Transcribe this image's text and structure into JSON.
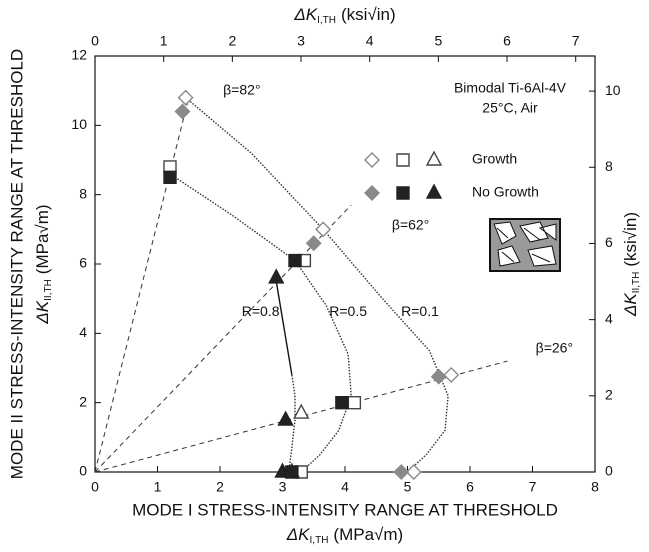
{
  "chart_data": {
    "type": "scatter",
    "xlim": [
      0,
      8
    ],
    "xticks": [
      0,
      1,
      2,
      3,
      4,
      5,
      6,
      7,
      8
    ],
    "ylim": [
      0,
      12
    ],
    "yticks": [
      0,
      2,
      4,
      6,
      8,
      10,
      12
    ],
    "x2lim": [
      0,
      7.281
    ],
    "x2ticks": [
      0,
      1,
      2,
      3,
      4,
      5,
      6,
      7
    ],
    "y2lim": [
      0,
      10.921
    ],
    "y2ticks": [
      0,
      2,
      4,
      6,
      8,
      10
    ],
    "x_label": {
      "text": "MODE I STRESS-INTENSITY RANGE AT THRESHOLD",
      "symbol": "ΔK",
      "subscript": "I,TH",
      "unit": "(MPa√m)"
    },
    "x2_label": {
      "symbol": "ΔK",
      "subscript": "I,TH",
      "unit": "(ksi√in)"
    },
    "y_label": {
      "text": "MODE II STRESS-INTENSITY RANGE AT THRESHOLD",
      "symbol": "ΔK",
      "subscript": "II,TH",
      "unit": "(MPa√m)"
    },
    "y2_label": {
      "symbol": "ΔK",
      "subscript": "II,TH",
      "unit": "(ksi√in)"
    },
    "annotations": [
      "Bimodal Ti-6Al-4V",
      "25°C, Air"
    ],
    "groups": [
      {
        "name": "Growth",
        "series": [
          {
            "marker": "diamond",
            "filled": false,
            "color": "#888888",
            "x": [
              1.45,
              3.65,
              5.7,
              5.1
            ],
            "y": [
              10.8,
              7.0,
              2.8,
              0.0
            ]
          },
          {
            "marker": "square",
            "filled": false,
            "color": "#444444",
            "x": [
              1.2,
              3.35,
              4.15,
              3.3
            ],
            "y": [
              8.8,
              6.1,
              2.0,
              0.0
            ]
          },
          {
            "marker": "triangle",
            "filled": false,
            "color": "#444444",
            "x": [
              3.3,
              3.15
            ],
            "y": [
              1.7,
              0.0
            ]
          }
        ]
      },
      {
        "name": "No Growth",
        "series": [
          {
            "marker": "diamond",
            "filled": true,
            "color": "#8a8a8a",
            "x": [
              1.4,
              3.5,
              5.5,
              4.9
            ],
            "y": [
              10.4,
              6.6,
              2.75,
              0.0
            ]
          },
          {
            "marker": "square",
            "filled": true,
            "color": "#222222",
            "x": [
              1.2,
              3.2,
              3.95,
              3.15
            ],
            "y": [
              8.5,
              6.1,
              2.0,
              0.0
            ]
          },
          {
            "marker": "triangle",
            "filled": true,
            "color": "#222222",
            "x": [
              2.9,
              3.05,
              3.0
            ],
            "y": [
              5.6,
              1.5,
              0.0
            ]
          }
        ]
      }
    ],
    "curves": [
      {
        "label": "R=0.1",
        "style": "dotted",
        "x": [
          1.45,
          2.5,
          3.65,
          4.6,
          5.35,
          5.65,
          5.6,
          5.3,
          5.0
        ],
        "y": [
          10.8,
          9.2,
          7.0,
          5.0,
          3.5,
          2.2,
          1.2,
          0.5,
          0.0
        ]
      },
      {
        "label": "R=0.5",
        "style": "dotted",
        "x": [
          1.2,
          2.2,
          3.2,
          3.7,
          4.05,
          4.1,
          3.9,
          3.6,
          3.3
        ],
        "y": [
          8.6,
          7.4,
          6.1,
          4.8,
          3.4,
          2.2,
          1.2,
          0.5,
          0.0
        ]
      },
      {
        "label": "R=0.8",
        "style": "solid",
        "x": [
          2.9,
          3.15
        ],
        "y": [
          5.5,
          2.8
        ]
      },
      {
        "style": "dotted",
        "x": [
          3.15,
          3.2,
          3.2,
          3.15,
          3.1
        ],
        "y": [
          2.8,
          2.2,
          1.5,
          0.7,
          0.0
        ]
      }
    ],
    "reference_lines": [
      {
        "label": "β=82°",
        "x": [
          0,
          1.5
        ],
        "y": [
          0,
          10.8
        ]
      },
      {
        "label": "β=62°",
        "x": [
          0,
          4.1
        ],
        "y": [
          0,
          7.7
        ]
      },
      {
        "label": "β=26°",
        "x": [
          0,
          6.6
        ],
        "y": [
          0,
          3.2
        ]
      }
    ]
  }
}
